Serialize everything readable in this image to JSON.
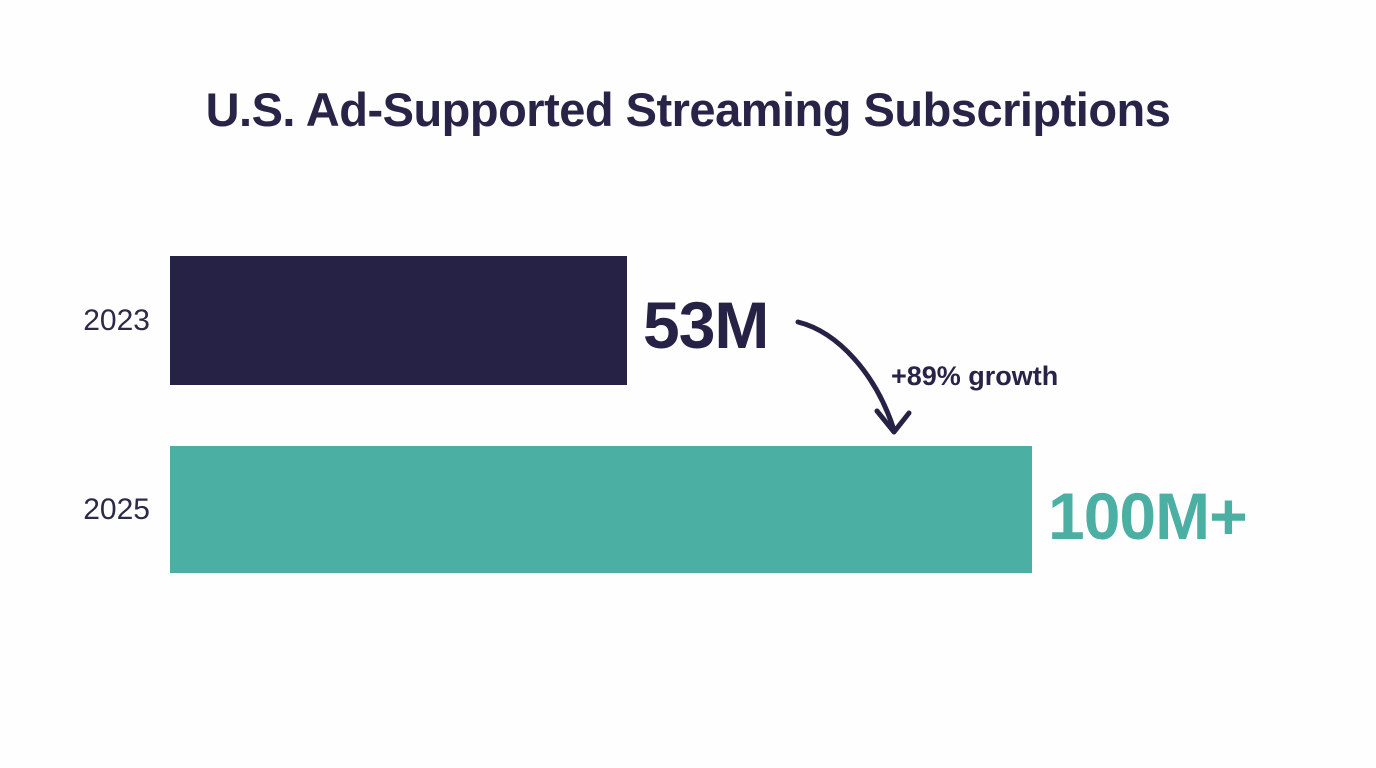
{
  "chart_data": {
    "type": "bar",
    "orientation": "horizontal",
    "title": "U.S. Ad-Supported Streaming Subscriptions",
    "categories": [
      "2023",
      "2025"
    ],
    "values": [
      53,
      100
    ],
    "value_labels": [
      "53M",
      "100M+"
    ],
    "annotation": "+89% growth",
    "bar_colors": [
      "#252245",
      "#4cafa4"
    ],
    "value_label_colors": [
      "#252245",
      "#4cafa4"
    ],
    "xlim": [
      0,
      100
    ],
    "grid": false,
    "legend": false
  },
  "colors": {
    "navy": "#252245",
    "teal": "#4cafa4",
    "background": "#fffefe"
  }
}
